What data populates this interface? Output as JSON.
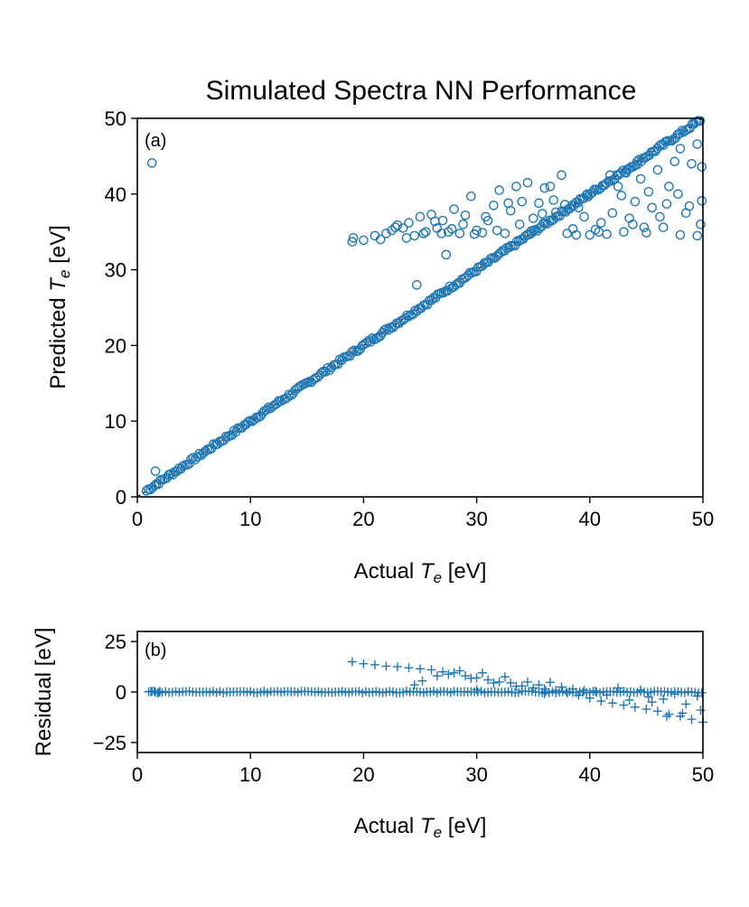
{
  "chart_data": [
    {
      "type": "scatter",
      "panel_label": "(a)",
      "title": "Simulated Spectra NN Performance",
      "xlabel_prefix": "Actual ",
      "xlabel_var": "T",
      "xlabel_sub": "e",
      "xlabel_suffix": " [eV]",
      "ylabel_prefix": "Predicted ",
      "ylabel_var": "T",
      "ylabel_sub": "e",
      "ylabel_suffix": " [eV]",
      "xlim": [
        0,
        50
      ],
      "ylim": [
        0,
        50
      ],
      "xticks": [
        0,
        10,
        20,
        30,
        40,
        50
      ],
      "yticks": [
        0,
        10,
        20,
        30,
        40,
        50
      ],
      "xtick_labels": [
        "0",
        "10",
        "20",
        "30",
        "40",
        "50"
      ],
      "ytick_labels": [
        "0",
        "10",
        "20",
        "30",
        "40",
        "50"
      ],
      "marker": "circle",
      "color": "#1f77b4",
      "diagonal": true,
      "points": [
        [
          1.3,
          44.1
        ],
        [
          1.6,
          3.4
        ],
        [
          24.7,
          28.0
        ],
        [
          27.3,
          32.0
        ],
        [
          26.9,
          34.8
        ],
        [
          19.0,
          33.7
        ],
        [
          19.1,
          34.2
        ],
        [
          20.0,
          33.9
        ],
        [
          21.0,
          34.5
        ],
        [
          22.0,
          34.8
        ],
        [
          22.5,
          35.2
        ],
        [
          23.0,
          35.9
        ],
        [
          23.5,
          35.5
        ],
        [
          24.0,
          36.2
        ],
        [
          24.5,
          34.5
        ],
        [
          25.0,
          37.0
        ],
        [
          25.5,
          35.0
        ],
        [
          26.0,
          37.3
        ],
        [
          26.5,
          35.5
        ],
        [
          27.0,
          36.5
        ],
        [
          27.5,
          35.0
        ],
        [
          28.0,
          38.0
        ],
        [
          28.5,
          34.8
        ],
        [
          29.0,
          37.2
        ],
        [
          29.5,
          39.7
        ],
        [
          30.0,
          35.2
        ],
        [
          30.5,
          34.9
        ],
        [
          31.0,
          36.5
        ],
        [
          31.5,
          38.5
        ],
        [
          32.0,
          40.5
        ],
        [
          32.5,
          34.8
        ],
        [
          33.0,
          37.8
        ],
        [
          33.5,
          41.0
        ],
        [
          34.0,
          39.0
        ],
        [
          34.5,
          41.5
        ],
        [
          35.0,
          36.8
        ],
        [
          35.5,
          38.8
        ],
        [
          36.0,
          40.8
        ],
        [
          36.5,
          41.0
        ],
        [
          37.0,
          37.6
        ],
        [
          37.5,
          42.5
        ],
        [
          38.0,
          34.8
        ],
        [
          38.5,
          35.4
        ],
        [
          39.0,
          38.2
        ],
        [
          39.5,
          37.0
        ],
        [
          40.0,
          34.6
        ],
        [
          40.5,
          35.3
        ],
        [
          41.0,
          36.2
        ],
        [
          41.5,
          34.7
        ],
        [
          42.0,
          37.5
        ],
        [
          42.5,
          41.0
        ],
        [
          43.0,
          35.0
        ],
        [
          43.5,
          36.8
        ],
        [
          44.0,
          39.0
        ],
        [
          44.5,
          42.0
        ],
        [
          45.0,
          34.9
        ],
        [
          45.5,
          38.2
        ],
        [
          46.0,
          43.2
        ],
        [
          46.5,
          35.6
        ],
        [
          47.0,
          41.0
        ],
        [
          47.5,
          44.3
        ],
        [
          48.0,
          34.6
        ],
        [
          48.5,
          37.5
        ],
        [
          49.0,
          44.0
        ],
        [
          49.5,
          34.5
        ],
        [
          49.8,
          36.0
        ],
        [
          49.9,
          39.1
        ],
        [
          49.9,
          43.6
        ],
        [
          49.5,
          46.6
        ],
        [
          48.0,
          46.0
        ],
        [
          46.8,
          38.7
        ],
        [
          45.2,
          40.3
        ],
        [
          44.2,
          43.9
        ],
        [
          43.8,
          36.0
        ],
        [
          42.8,
          39.8
        ],
        [
          41.8,
          42.5
        ],
        [
          40.8,
          35.0
        ],
        [
          39.8,
          40.0
        ],
        [
          38.8,
          34.6
        ],
        [
          37.8,
          38.6
        ],
        [
          36.8,
          39.2
        ],
        [
          35.8,
          37.4
        ],
        [
          34.8,
          35.1
        ],
        [
          33.8,
          36.0
        ],
        [
          32.8,
          38.8
        ],
        [
          31.8,
          35.2
        ],
        [
          30.8,
          37.0
        ],
        [
          29.8,
          34.7
        ],
        [
          28.8,
          36.0
        ],
        [
          27.8,
          35.4
        ],
        [
          26.3,
          36.4
        ],
        [
          25.3,
          34.8
        ],
        [
          23.8,
          34.2
        ],
        [
          22.8,
          35.6
        ],
        [
          21.5,
          34.0
        ],
        [
          47.8,
          40.0
        ],
        [
          46.2,
          37.0
        ],
        [
          44.8,
          35.6
        ],
        [
          43.2,
          42.8
        ],
        [
          48.8,
          38.4
        ]
      ],
      "line_band": {
        "x_start": 0.8,
        "x_end": 49.9,
        "slope": 1.0,
        "intercept": 0.0
      }
    },
    {
      "type": "scatter",
      "panel_label": "(b)",
      "xlabel_prefix": "Actual ",
      "xlabel_var": "T",
      "xlabel_sub": "e",
      "xlabel_suffix": " [eV]",
      "ylabel": "Residual [eV]",
      "xlim": [
        0,
        50
      ],
      "ylim": [
        -30,
        30
      ],
      "xticks": [
        0,
        10,
        20,
        30,
        40,
        50
      ],
      "yticks": [
        -25,
        0,
        25
      ],
      "xtick_labels": [
        "0",
        "10",
        "20",
        "30",
        "40",
        "50"
      ],
      "ytick_labels": [
        "−25",
        "0",
        "25"
      ],
      "marker": "plus",
      "color": "#1f77b4",
      "points": [
        [
          19.0,
          15.0
        ],
        [
          20.0,
          14.0
        ],
        [
          21.0,
          13.5
        ],
        [
          22.0,
          12.8
        ],
        [
          23.0,
          12.5
        ],
        [
          24.0,
          12.0
        ],
        [
          25.0,
          11.5
        ],
        [
          26.0,
          11.0
        ],
        [
          27.0,
          10.0
        ],
        [
          28.0,
          9.5
        ],
        [
          29.0,
          8.0
        ],
        [
          30.0,
          7.0
        ],
        [
          31.0,
          6.0
        ],
        [
          32.0,
          5.0
        ],
        [
          33.0,
          4.5
        ],
        [
          34.0,
          3.0
        ],
        [
          35.0,
          2.0
        ],
        [
          36.0,
          1.5
        ],
        [
          37.0,
          0.8
        ],
        [
          38.0,
          -0.5
        ],
        [
          39.0,
          -1.5
        ],
        [
          40.0,
          -3.0
        ],
        [
          41.0,
          -4.5
        ],
        [
          42.0,
          -5.5
        ],
        [
          43.0,
          -6.5
        ],
        [
          44.0,
          -7.5
        ],
        [
          45.0,
          -8.5
        ],
        [
          46.0,
          -9.5
        ],
        [
          47.0,
          -11.0
        ],
        [
          48.0,
          -12.0
        ],
        [
          49.0,
          -13.5
        ],
        [
          50.0,
          -15.0
        ],
        [
          26.5,
          8.0
        ],
        [
          27.5,
          8.8
        ],
        [
          28.5,
          10.5
        ],
        [
          29.5,
          6.8
        ],
        [
          30.5,
          9.5
        ],
        [
          31.5,
          4.5
        ],
        [
          32.5,
          7.5
        ],
        [
          33.5,
          2.8
        ],
        [
          34.5,
          5.0
        ],
        [
          35.5,
          3.5
        ],
        [
          36.5,
          4.8
        ],
        [
          37.5,
          2.5
        ],
        [
          25.2,
          5.5
        ],
        [
          24.5,
          3.5
        ],
        [
          42.5,
          2.0
        ],
        [
          44.5,
          1.0
        ],
        [
          46.5,
          -3.5
        ],
        [
          48.5,
          -6.0
        ],
        [
          49.5,
          -2.0
        ],
        [
          47.5,
          -1.0
        ],
        [
          45.5,
          -5.0
        ],
        [
          43.5,
          -4.0
        ],
        [
          41.5,
          -1.5
        ],
        [
          40.5,
          0.5
        ],
        [
          49.8,
          -9.0
        ],
        [
          48.2,
          -10.5
        ],
        [
          46.8,
          -12.0
        ],
        [
          45.2,
          -2.5
        ],
        [
          39.5,
          0.8
        ],
        [
          38.5,
          1.5
        ],
        [
          36.0,
          -0.8
        ],
        [
          34.0,
          0.5
        ],
        [
          30.0,
          1.2
        ],
        [
          1.5,
          0.5
        ],
        [
          1.8,
          -0.5
        ],
        [
          1.2,
          0.2
        ],
        [
          2.0,
          0.3
        ]
      ],
      "line_band": {
        "x_start": 1.0,
        "x_end": 50.0,
        "value": 0.0
      }
    }
  ]
}
